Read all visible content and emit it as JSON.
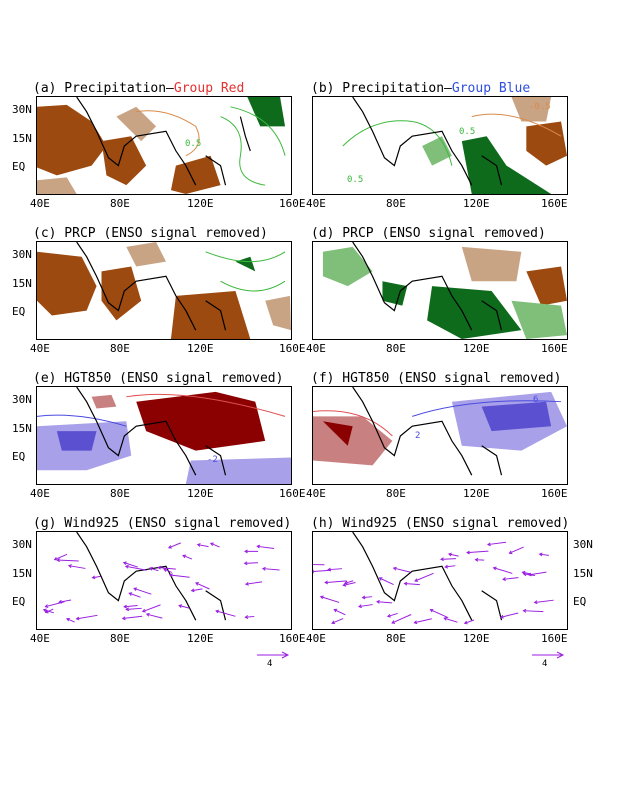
{
  "panels": {
    "a": {
      "title_prefix": "(a) Precipitation—",
      "title_group": "Group Red"
    },
    "b": {
      "title_prefix": "(b) Precipitation—",
      "title_group": "Group Blue"
    },
    "c": {
      "title": "(c) PRCP (ENSO signal removed)"
    },
    "d": {
      "title": "(d) PRCP (ENSO signal removed)"
    },
    "e": {
      "title": "(e) HGT850 (ENSO signal removed)"
    },
    "f": {
      "title": "(f) HGT850 (ENSO signal removed)"
    },
    "g": {
      "title": "(g) Wind925 (ENSO signal removed)"
    },
    "h": {
      "title": "(h) Wind925 (ENSO signal removed)"
    }
  },
  "lat_ticks": [
    "30N",
    "15N",
    "EQ"
  ],
  "lon_ticks": [
    "40E",
    "80E",
    "120E",
    "160E"
  ],
  "contour_labels": {
    "b_neg": "-0.5",
    "b_pos": "0.5",
    "b_pos2": "0.5",
    "e_neg": "-2",
    "f_pos": "2",
    "f_pos2": "6",
    "a_pos": "0.5"
  },
  "vector_ref": {
    "g": "4",
    "h": "4"
  },
  "colors": {
    "dry_dark": "#9c4a10",
    "dry_light": "#c8a485",
    "dry_line": "#d98a4a",
    "wet_dark": "#0e6b1c",
    "wet_light": "#7fbf7a",
    "wet_line": "#3cb83c",
    "hgt_pos_dark": "#8b0000",
    "hgt_pos_light": "#c98080",
    "hgt_pos_line": "#e05050",
    "hgt_neg_dark": "#5a50d0",
    "hgt_neg_light": "#a8a0e8",
    "hgt_neg_line": "#4a4ae0",
    "vector": "#9a1ee0",
    "coast": "#000000"
  }
}
